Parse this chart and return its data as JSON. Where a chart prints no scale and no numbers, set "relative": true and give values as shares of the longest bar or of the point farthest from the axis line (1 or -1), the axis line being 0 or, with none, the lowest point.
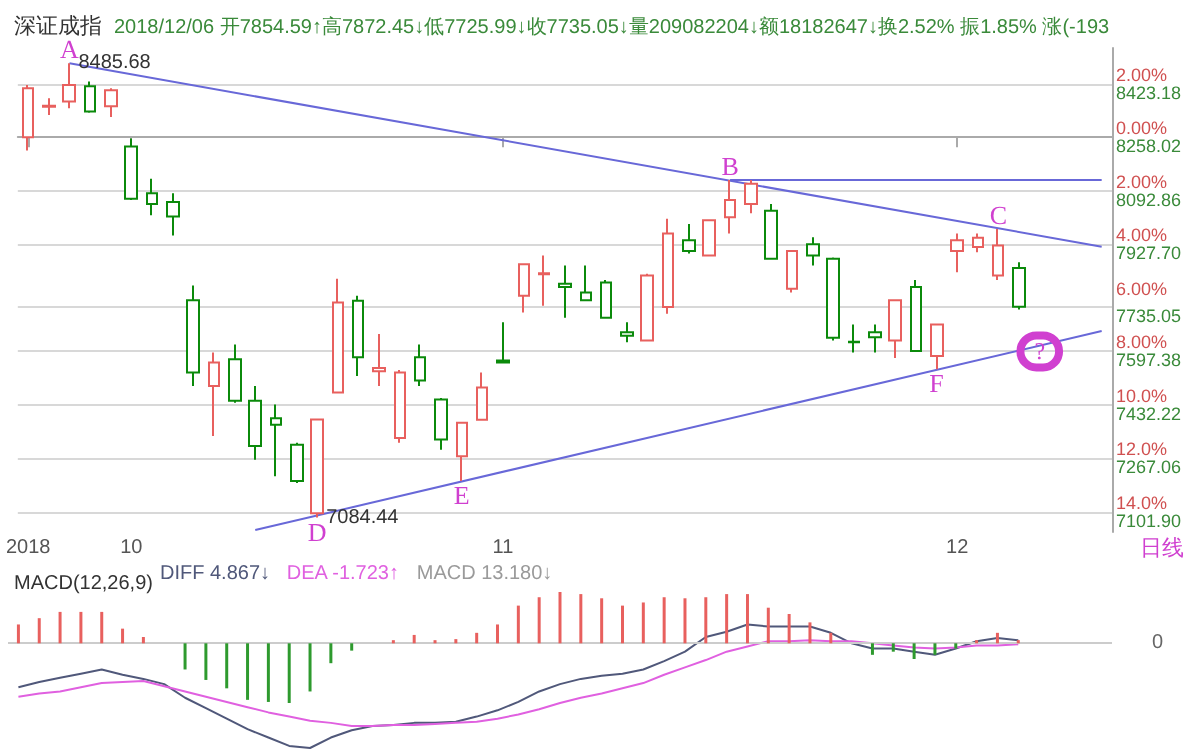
{
  "chart_data": [
    {
      "type": "candlestick",
      "title": "深证成指",
      "subtitle": "2018/12/06 开7854.59↑高7872.45↓低7725.99↓收7735.05↓量209082204↓额18182647↓换2.52% 振1.85% 涨(-193",
      "categories": [
        "2018",
        null,
        null,
        null,
        null,
        "10",
        null,
        null,
        null,
        null,
        null,
        null,
        null,
        null,
        null,
        null,
        null,
        null,
        null,
        null,
        null,
        null,
        null,
        "11",
        null,
        null,
        null,
        null,
        null,
        null,
        null,
        null,
        null,
        null,
        null,
        null,
        null,
        null,
        null,
        null,
        null,
        null,
        null,
        null,
        null,
        "12",
        null,
        null,
        null,
        null,
        null,
        null,
        null
      ],
      "ohlc": [
        [
          8258,
          8419,
          8217,
          8409
        ],
        [
          8352,
          8378,
          8326,
          8355
        ],
        [
          8368,
          8485.68,
          8347,
          8419
        ],
        [
          8415,
          8430,
          8333,
          8337
        ],
        [
          8353,
          8409,
          8320,
          8403
        ],
        [
          8229,
          8254,
          8064,
          8068
        ],
        [
          8085,
          8130,
          8017,
          8052
        ],
        [
          8058,
          8085,
          7955,
          8013
        ],
        [
          7755,
          7800,
          7490,
          7532
        ],
        [
          7490,
          7594,
          7336,
          7563
        ],
        [
          7573,
          7618,
          7439,
          7445
        ],
        [
          7445,
          7490,
          7263,
          7305
        ],
        [
          7391,
          7433,
          7212,
          7371
        ],
        [
          7309,
          7315,
          7191,
          7197
        ],
        [
          7098,
          7387,
          7084.44,
          7387
        ],
        [
          7470,
          7821,
          7470,
          7748
        ],
        [
          7753,
          7769,
          7521,
          7579
        ],
        [
          7536,
          7651,
          7490,
          7546
        ],
        [
          7330,
          7540,
          7315,
          7532
        ],
        [
          7579,
          7618,
          7490,
          7507
        ],
        [
          7449,
          7453,
          7294,
          7325
        ],
        [
          7274,
          7377,
          7197,
          7377
        ],
        [
          7386,
          7532,
          7386,
          7486
        ],
        [
          7569,
          7687,
          7563,
          7563
        ],
        [
          7769,
          7866,
          7717,
          7866
        ],
        [
          7835,
          7893,
          7738,
          7838
        ],
        [
          7806,
          7862,
          7701,
          7796
        ],
        [
          7779,
          7862,
          7755,
          7755
        ],
        [
          7810,
          7817,
          7701,
          7701
        ],
        [
          7656,
          7687,
          7625,
          7645
        ],
        [
          7631,
          7837,
          7631,
          7831
        ],
        [
          7734,
          8006,
          7713,
          7961
        ],
        [
          7940,
          7990,
          7899,
          7907
        ],
        [
          7893,
          8002,
          7893,
          8002
        ],
        [
          8011,
          8126,
          7961,
          8064
        ],
        [
          8052,
          8126,
          8023,
          8114
        ],
        [
          8031,
          8052,
          7883,
          7883
        ],
        [
          7790,
          7907,
          7779,
          7907
        ],
        [
          7928,
          7949,
          7862,
          7893
        ],
        [
          7883,
          7887,
          7631,
          7639
        ],
        [
          7627,
          7680,
          7594,
          7625
        ],
        [
          7656,
          7680,
          7594,
          7641
        ],
        [
          7631,
          7755,
          7577,
          7755
        ],
        [
          7796,
          7817,
          7598,
          7598
        ],
        [
          7583,
          7680,
          7542,
          7680
        ],
        [
          7907,
          7961,
          7841,
          7940
        ],
        [
          7919,
          7961,
          7903,
          7948
        ],
        [
          7831,
          7975,
          7817,
          7924
        ],
        [
          7854.59,
          7872.45,
          7725.99,
          7735.05
        ],
        null,
        null,
        null,
        null
      ],
      "colors": [
        "#e8605e",
        "#e8605e",
        "#e8605e",
        "#0b8a0b",
        "#e8605e",
        "#0b8a0b",
        "#0b8a0b",
        "#0b8a0b",
        "#0b8a0b",
        "#e8605e",
        "#0b8a0b",
        "#0b8a0b",
        "#0b8a0b",
        "#0b8a0b",
        "#e8605e",
        "#e8605e",
        "#0b8a0b",
        "#e8605e",
        "#e8605e",
        "#0b8a0b",
        "#0b8a0b",
        "#e8605e",
        "#e8605e",
        "#0b8a0b",
        "#e8605e",
        "#e8605e",
        "#0b8a0b",
        "#0b8a0b",
        "#0b8a0b",
        "#0b8a0b",
        "#e8605e",
        "#e8605e",
        "#0b8a0b",
        "#e8605e",
        "#e8605e",
        "#e8605e",
        "#0b8a0b",
        "#e8605e",
        "#0b8a0b",
        "#0b8a0b",
        "#0b8a0b",
        "#0b8a0b",
        "#e8605e",
        "#0b8a0b",
        "#e8605e",
        "#e8605e",
        "#e8605e",
        "#e8605e",
        "#0b8a0b",
        null,
        null,
        null,
        null
      ],
      "series": [
        {
          "type": "line",
          "color": "#6868d8",
          "values": [
            null,
            null,
            8485.68,
            null,
            null,
            null,
            null,
            null,
            null,
            null,
            null,
            null,
            null,
            null,
            null,
            null,
            null,
            null,
            null,
            null,
            null,
            null,
            null,
            null,
            null,
            null,
            null,
            null,
            null,
            null,
            null,
            null,
            null,
            null,
            null,
            null,
            null,
            null,
            null,
            null,
            null,
            null,
            null,
            null,
            null,
            null,
            null,
            null,
            null,
            null,
            null,
            null,
            7920
          ]
        },
        {
          "type": "line",
          "color": "#6868d8",
          "values": [
            null,
            null,
            null,
            null,
            null,
            null,
            null,
            null,
            null,
            null,
            null,
            null,
            null,
            null,
            null,
            null,
            null,
            null,
            null,
            null,
            null,
            null,
            null,
            null,
            null,
            null,
            null,
            null,
            null,
            null,
            null,
            null,
            null,
            null,
            8126,
            null,
            null,
            null,
            null,
            null,
            null,
            null,
            null,
            null,
            null,
            null,
            null,
            null,
            null,
            null,
            null,
            null,
            8126
          ]
        },
        {
          "type": "line",
          "color": "#6868d8",
          "values": [
            null,
            null,
            null,
            null,
            null,
            null,
            null,
            null,
            null,
            null,
            null,
            7046,
            null,
            null,
            null,
            null,
            null,
            null,
            null,
            null,
            null,
            null,
            null,
            null,
            null,
            null,
            null,
            null,
            null,
            null,
            null,
            null,
            null,
            null,
            null,
            null,
            null,
            null,
            null,
            null,
            null,
            null,
            null,
            null,
            null,
            null,
            null,
            null,
            null,
            null,
            null,
            null,
            7660
          ]
        }
      ],
      "ylim": [
        7040,
        8533
      ],
      "yticks": [
        8423.18,
        8258.02,
        8092.86,
        {
          "value": 7927.7,
          "label": "7927.70"
        },
        7735.05,
        7597.38,
        7432.22,
        7267.06,
        {
          "value": 7101.9,
          "label": "7101.90"
        }
      ],
      "y2lim": [
        -14.75,
        3.33
      ],
      "y2ticks": [
        {
          "value": 2,
          "label": "2.00%"
        },
        {
          "value": 0,
          "label": "0.00%"
        },
        {
          "value": -2,
          "label": "2.00%"
        },
        {
          "value": -4,
          "label": "4.00%"
        },
        {
          "value": -6,
          "label": "6.00%"
        },
        {
          "value": -8,
          "label": "8.00%"
        },
        {
          "value": -10,
          "label": "10.0%"
        },
        {
          "value": -12,
          "label": "12.0%"
        },
        {
          "value": -14,
          "label": "14.0%"
        }
      ],
      "grid": "y",
      "annotations": [
        {
          "text": "A",
          "y": 8485.68
        },
        {
          "text": "8485.68",
          "y": 8485.68
        },
        {
          "text": "B",
          "y": 8126
        },
        {
          "text": "C",
          "y": 7975
        },
        {
          "text": "D",
          "y": 7084.44
        },
        "7084.44",
        {
          "text": "E",
          "y": 7197
        },
        {
          "text": "F",
          "y": 7542
        },
        {
          "text": "?",
          "y": 7597
        },
        "日线"
      ]
    },
    {
      "type": "bar",
      "title": "MACD(12,26,9)",
      "relative": true,
      "categories": [
        null,
        null,
        null,
        null,
        null,
        null,
        null,
        null,
        null,
        null,
        null,
        null,
        null,
        null,
        null,
        null,
        null,
        null,
        null,
        null,
        null,
        null,
        null,
        null,
        null,
        null,
        null,
        null,
        null,
        null,
        null,
        null,
        null,
        null,
        null,
        null,
        null,
        null,
        null,
        null,
        null,
        null,
        null,
        null,
        null,
        null,
        null,
        null,
        null,
        null,
        null,
        null,
        null
      ],
      "series": [
        {
          "type": "line",
          "name": "DIFF 4.867↓",
          "color": "#50587a",
          "values": [
            -0.42,
            -0.37,
            -0.33,
            -0.29,
            -0.25,
            -0.3,
            -0.34,
            -0.39,
            -0.52,
            -0.62,
            -0.72,
            -0.82,
            -0.9,
            -0.98,
            -1,
            -0.9,
            -0.83,
            -0.79,
            -0.78,
            -0.76,
            -0.76,
            -0.75,
            -0.7,
            -0.64,
            -0.56,
            -0.46,
            -0.39,
            -0.34,
            -0.31,
            -0.29,
            -0.25,
            -0.17,
            -0.08,
            0.06,
            0.11,
            0.18,
            0.16,
            0.16,
            0.16,
            0.1,
            0,
            -0.05,
            -0.05,
            -0.08,
            -0.11,
            -0.05,
            0.02,
            0.05,
            0.03,
            null,
            null,
            null,
            null
          ]
        },
        {
          "type": "line",
          "name": "DEA -1.723↑",
          "color": "#e060e0",
          "values": [
            -0.51,
            -0.48,
            -0.46,
            -0.42,
            -0.38,
            -0.37,
            -0.36,
            -0.41,
            -0.46,
            -0.51,
            -0.56,
            -0.61,
            -0.66,
            -0.7,
            -0.74,
            -0.76,
            -0.79,
            -0.79,
            -0.78,
            -0.78,
            -0.77,
            -0.76,
            -0.75,
            -0.72,
            -0.68,
            -0.63,
            -0.57,
            -0.52,
            -0.48,
            -0.43,
            -0.38,
            -0.3,
            -0.23,
            -0.16,
            -0.08,
            -0.03,
            0.02,
            0.02,
            0.03,
            0.02,
            0.02,
            0,
            -0.02,
            -0.04,
            -0.05,
            -0.04,
            -0.02,
            -0.02,
            -0.01,
            null,
            null,
            null,
            null
          ]
        },
        {
          "type": "bar",
          "name": "MACD 13.180↓",
          "color": "#9a9a9a",
          "values": [
            0.18,
            0.24,
            0.3,
            0.3,
            0.3,
            0.14,
            0.06,
            0,
            -0.25,
            -0.35,
            -0.43,
            -0.54,
            -0.56,
            -0.57,
            -0.46,
            -0.19,
            -0.07,
            0,
            0.03,
            0.08,
            0.03,
            0.04,
            0.1,
            0.18,
            0.36,
            0.44,
            0.49,
            0.47,
            0.43,
            0.36,
            0.39,
            0.44,
            0.43,
            0.44,
            0.47,
            0.47,
            0.34,
            0.28,
            0.2,
            0.1,
            0,
            -0.11,
            -0.08,
            -0.15,
            -0.11,
            -0.05,
            0.03,
            0.1,
            0.03,
            null,
            null,
            null,
            null
          ],
          "colors": [
            "#e8605e",
            "#e8605e",
            "#e8605e",
            "#e8605e",
            "#e8605e",
            "#e8605e",
            "#e8605e",
            "#e8605e",
            "#2e9a2e",
            "#2e9a2e",
            "#2e9a2e",
            "#2e9a2e",
            "#2e9a2e",
            "#2e9a2e",
            "#2e9a2e",
            "#2e9a2e",
            "#2e9a2e",
            "#e8605e",
            "#e8605e",
            "#e8605e",
            "#e8605e",
            "#e8605e",
            "#e8605e",
            "#e8605e",
            "#e8605e",
            "#e8605e",
            "#e8605e",
            "#e8605e",
            "#e8605e",
            "#e8605e",
            "#e8605e",
            "#e8605e",
            "#e8605e",
            "#e8605e",
            "#e8605e",
            "#e8605e",
            "#e8605e",
            "#e8605e",
            "#e8605e",
            "#e8605e",
            "#e8605e",
            "#2e9a2e",
            "#2e9a2e",
            "#2e9a2e",
            "#2e9a2e",
            "#2e9a2e",
            "#e8605e",
            "#e8605e",
            "#e8605e",
            null,
            null,
            null,
            null
          ]
        }
      ],
      "ref_lines": [
        {
          "axis": "y",
          "value": 0,
          "label": "0",
          "color": "#cccccc"
        }
      ]
    }
  ]
}
